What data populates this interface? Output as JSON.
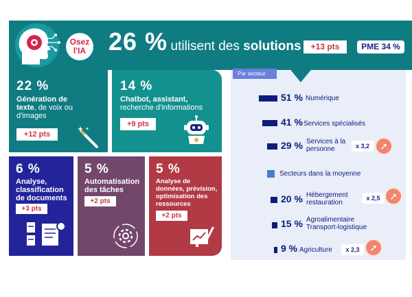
{
  "header": {
    "logo_line1": "Osez",
    "logo_line2": "l'IA",
    "big_percent": "26 %",
    "text_prefix": "utilisent des ",
    "text_bold": "solutions d'IA",
    "gain": "+13 pts",
    "pme": "PME 34 %"
  },
  "cards": [
    {
      "percent": "22 %",
      "line1": "Génération de",
      "line2_bold": "texte",
      "line2_rest": ", de voix ou",
      "line3": "d'images",
      "gain": "+12 pts",
      "bg": "#0f7c82"
    },
    {
      "percent": "14 %",
      "line1": "Chatbot, assistant,",
      "line2": "recherche d'informations",
      "gain": "+9 pts",
      "bg": "#13918f"
    },
    {
      "percent": "6 %",
      "line1": "Analyse,",
      "line2": "classification",
      "line3": "de documents",
      "gain": "+3 pts",
      "bg": "#23249a"
    },
    {
      "percent": "5 %",
      "line1": "Automatisation",
      "line2": "des tâches",
      "gain": "+2 pts",
      "bg": "#72476b"
    },
    {
      "percent": "5 %",
      "line1": "Analyse de",
      "line2": "données, prévision,",
      "line3": "optimisation des",
      "line4": "ressources",
      "gain": "+2 pts",
      "bg": "#b23a44"
    }
  ],
  "sectors": {
    "tab_label": "Par secteur",
    "rows": [
      {
        "percent": "51 %",
        "label": "Numérique",
        "value": 51
      },
      {
        "percent": "41 %",
        "label": "Services spécialisés",
        "value": 41
      },
      {
        "percent": "29 %",
        "label1": "Services à la",
        "label2": "personne",
        "value": 29,
        "multiplier": "x 3,2"
      },
      {
        "label": "Secteurs dans la  moyenne"
      },
      {
        "percent": "20 %",
        "label1": "Hébergement",
        "label2": "restauration",
        "value": 20,
        "multiplier": "x 2,5"
      },
      {
        "percent": "15 %",
        "label1": "Agroalimentaire",
        "label2": "Transport-logistique",
        "value": 15
      },
      {
        "percent": "9 %",
        "label": "Agriculture",
        "value": 9,
        "multiplier": "x 2,3"
      }
    ]
  },
  "colors": {
    "navy": "#0d1b7e",
    "teal": "#0f7c82",
    "accent": "#f0866f",
    "gain_red": "#c8364a",
    "panel": "#e9eef8"
  }
}
